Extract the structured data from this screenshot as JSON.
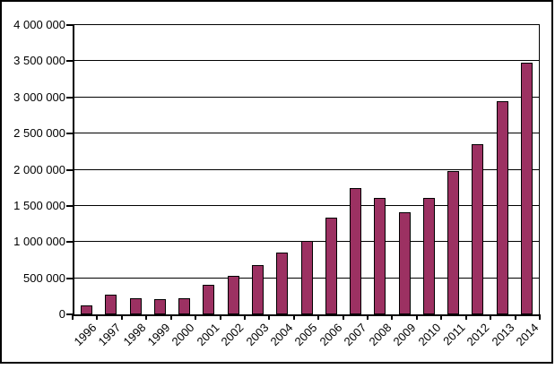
{
  "chart_data": {
    "type": "bar",
    "title": "",
    "xlabel": "",
    "ylabel": "",
    "categories": [
      "1996",
      "1997",
      "1998",
      "1999",
      "2000",
      "2001",
      "2002",
      "2003",
      "2004",
      "2005",
      "2006",
      "2007",
      "2008",
      "2009",
      "2010",
      "2011",
      "2012",
      "2013",
      "2014"
    ],
    "values": [
      130000,
      275000,
      225000,
      205000,
      225000,
      405000,
      535000,
      685000,
      860000,
      1015000,
      1335000,
      1750000,
      1605000,
      1410000,
      1605000,
      1980000,
      2350000,
      2945000,
      3475000
    ],
    "ylim": [
      0,
      4000000
    ],
    "ytick_step": 500000,
    "ytick_labels": [
      "0",
      "500 000",
      "1 000 000",
      "1 500 000",
      "2 000 000",
      "2 500 000",
      "3 000 000",
      "3 500 000",
      "4 000 000"
    ],
    "grid": true,
    "legend": false,
    "bar_color": "#9C3162",
    "bar_border_color": "#000000",
    "axis_color": "#000000",
    "gridline_color": "#000000",
    "background_color": "#FFFFFF"
  }
}
